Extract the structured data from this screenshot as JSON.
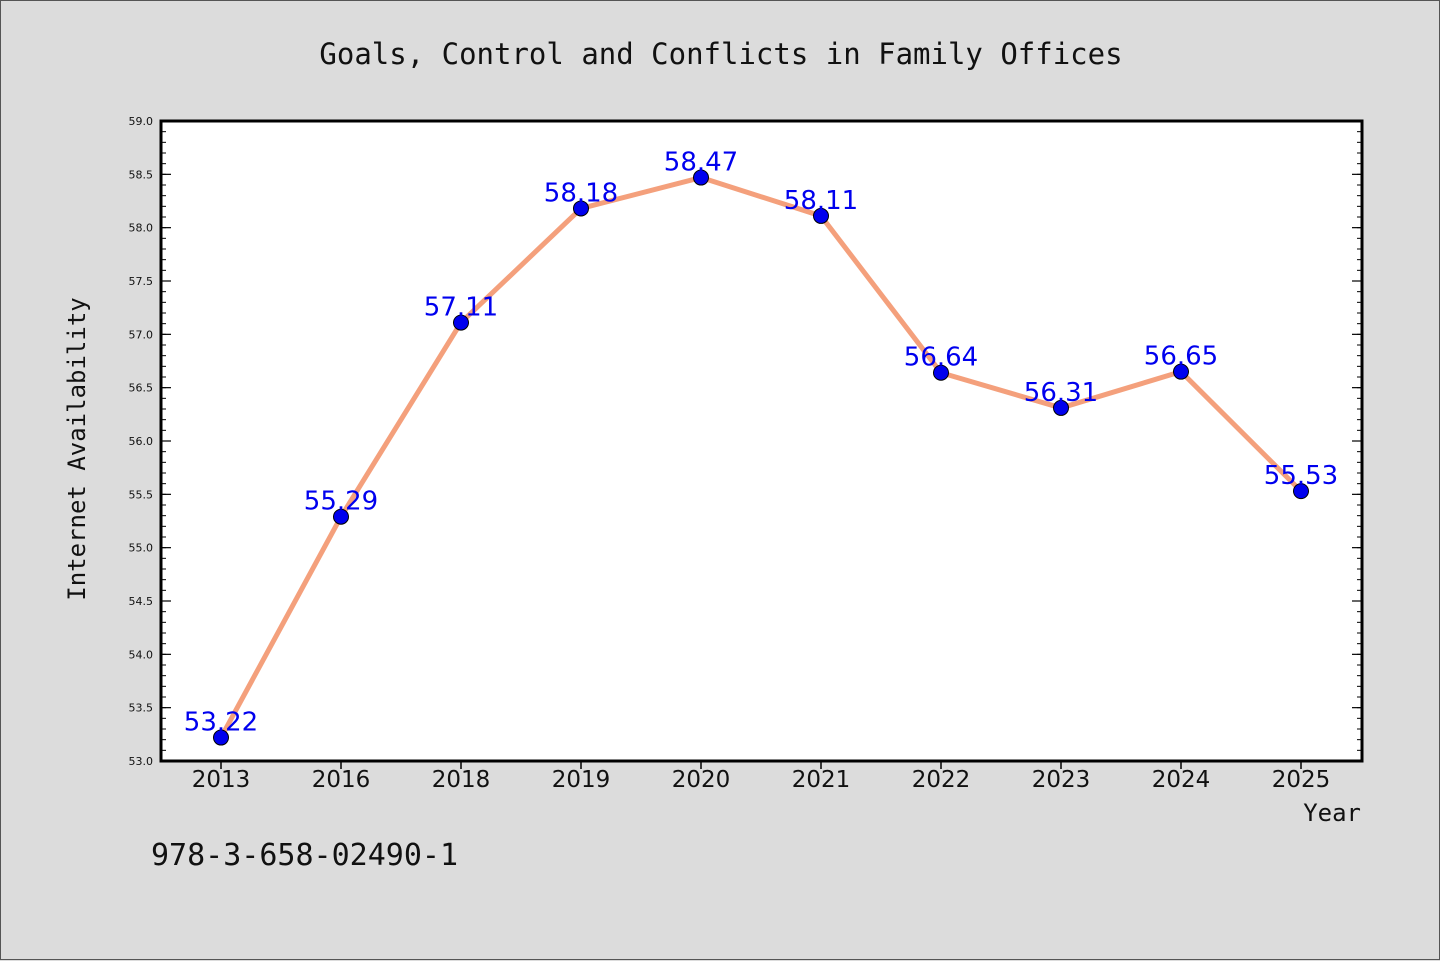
{
  "chart_data": {
    "type": "line",
    "title": "Goals, Control and Conflicts in Family Offices",
    "xlabel": "Year",
    "ylabel": "Internet Availability",
    "categories": [
      "2013",
      "2016",
      "2018",
      "2019",
      "2020",
      "2021",
      "2022",
      "2023",
      "2024",
      "2025"
    ],
    "values": [
      53.22,
      55.29,
      57.11,
      58.18,
      58.47,
      58.11,
      56.64,
      56.31,
      56.65,
      55.53
    ],
    "data_labels": [
      "53.22",
      "55.29",
      "57.11",
      "58.18",
      "58.47",
      "58.11",
      "56.64",
      "56.31",
      "56.65",
      "55.53"
    ],
    "ylim": [
      53.0,
      59.0
    ],
    "yticks": [
      "53.0",
      "53.5",
      "54.0",
      "54.5",
      "55.0",
      "55.5",
      "56.0",
      "56.5",
      "57.0",
      "57.5",
      "58.0",
      "58.5",
      "59.0"
    ],
    "grid": false,
    "legend": "none",
    "colors": {
      "line": "#f4a07c",
      "marker": "#0000ee",
      "label": "#0000ee",
      "plot_background": "#ffffff",
      "page_background": "#dcdcdc"
    }
  },
  "annotation": "978-3-658-02490-1"
}
